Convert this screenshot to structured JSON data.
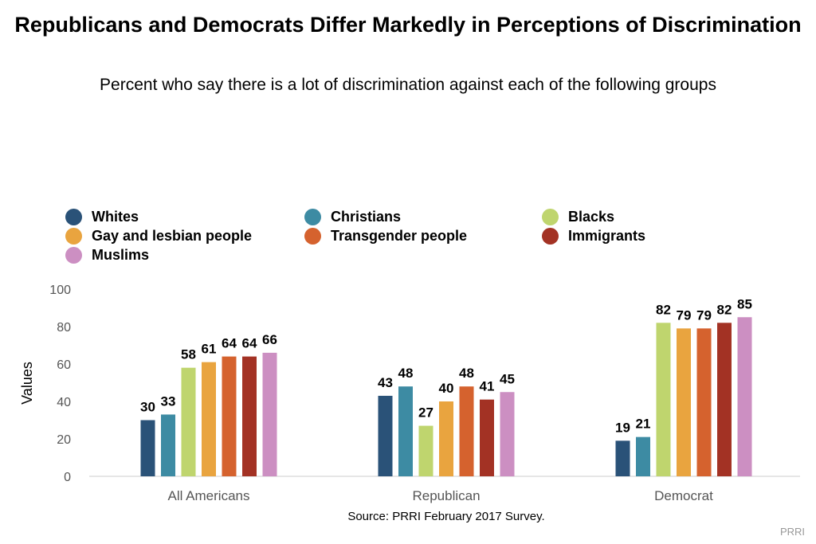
{
  "chart_data": {
    "type": "bar",
    "title": "Republicans and Democrats Differ Markedly in Perceptions of Discrimination",
    "subtitle": "Percent who say there is a lot of discrimination against each of the following groups",
    "ylabel": "Values",
    "xlabel": "",
    "ylim": [
      0,
      100
    ],
    "yticks": [
      0,
      20,
      40,
      60,
      80,
      100
    ],
    "grid": false,
    "legend_position": "top",
    "categories": [
      "All Americans",
      "Republican",
      "Democrat"
    ],
    "series": [
      {
        "name": "Whites",
        "color": "#2a5278",
        "values": [
          30,
          43,
          19
        ]
      },
      {
        "name": "Christians",
        "color": "#3d8ba3",
        "values": [
          33,
          48,
          21
        ]
      },
      {
        "name": "Blacks",
        "color": "#bfd56e",
        "values": [
          58,
          27,
          82
        ]
      },
      {
        "name": "Gay and lesbian people",
        "color": "#e9a43f",
        "values": [
          61,
          40,
          79
        ]
      },
      {
        "name": "Transgender people",
        "color": "#d5622e",
        "values": [
          64,
          48,
          79
        ]
      },
      {
        "name": "Immigrants",
        "color": "#a33224",
        "values": [
          64,
          41,
          82
        ]
      },
      {
        "name": "Muslims",
        "color": "#cc8fc2",
        "values": [
          66,
          45,
          85
        ]
      }
    ]
  },
  "source": "Source: PRRI February 2017 Survey.",
  "footer": "PRRI"
}
